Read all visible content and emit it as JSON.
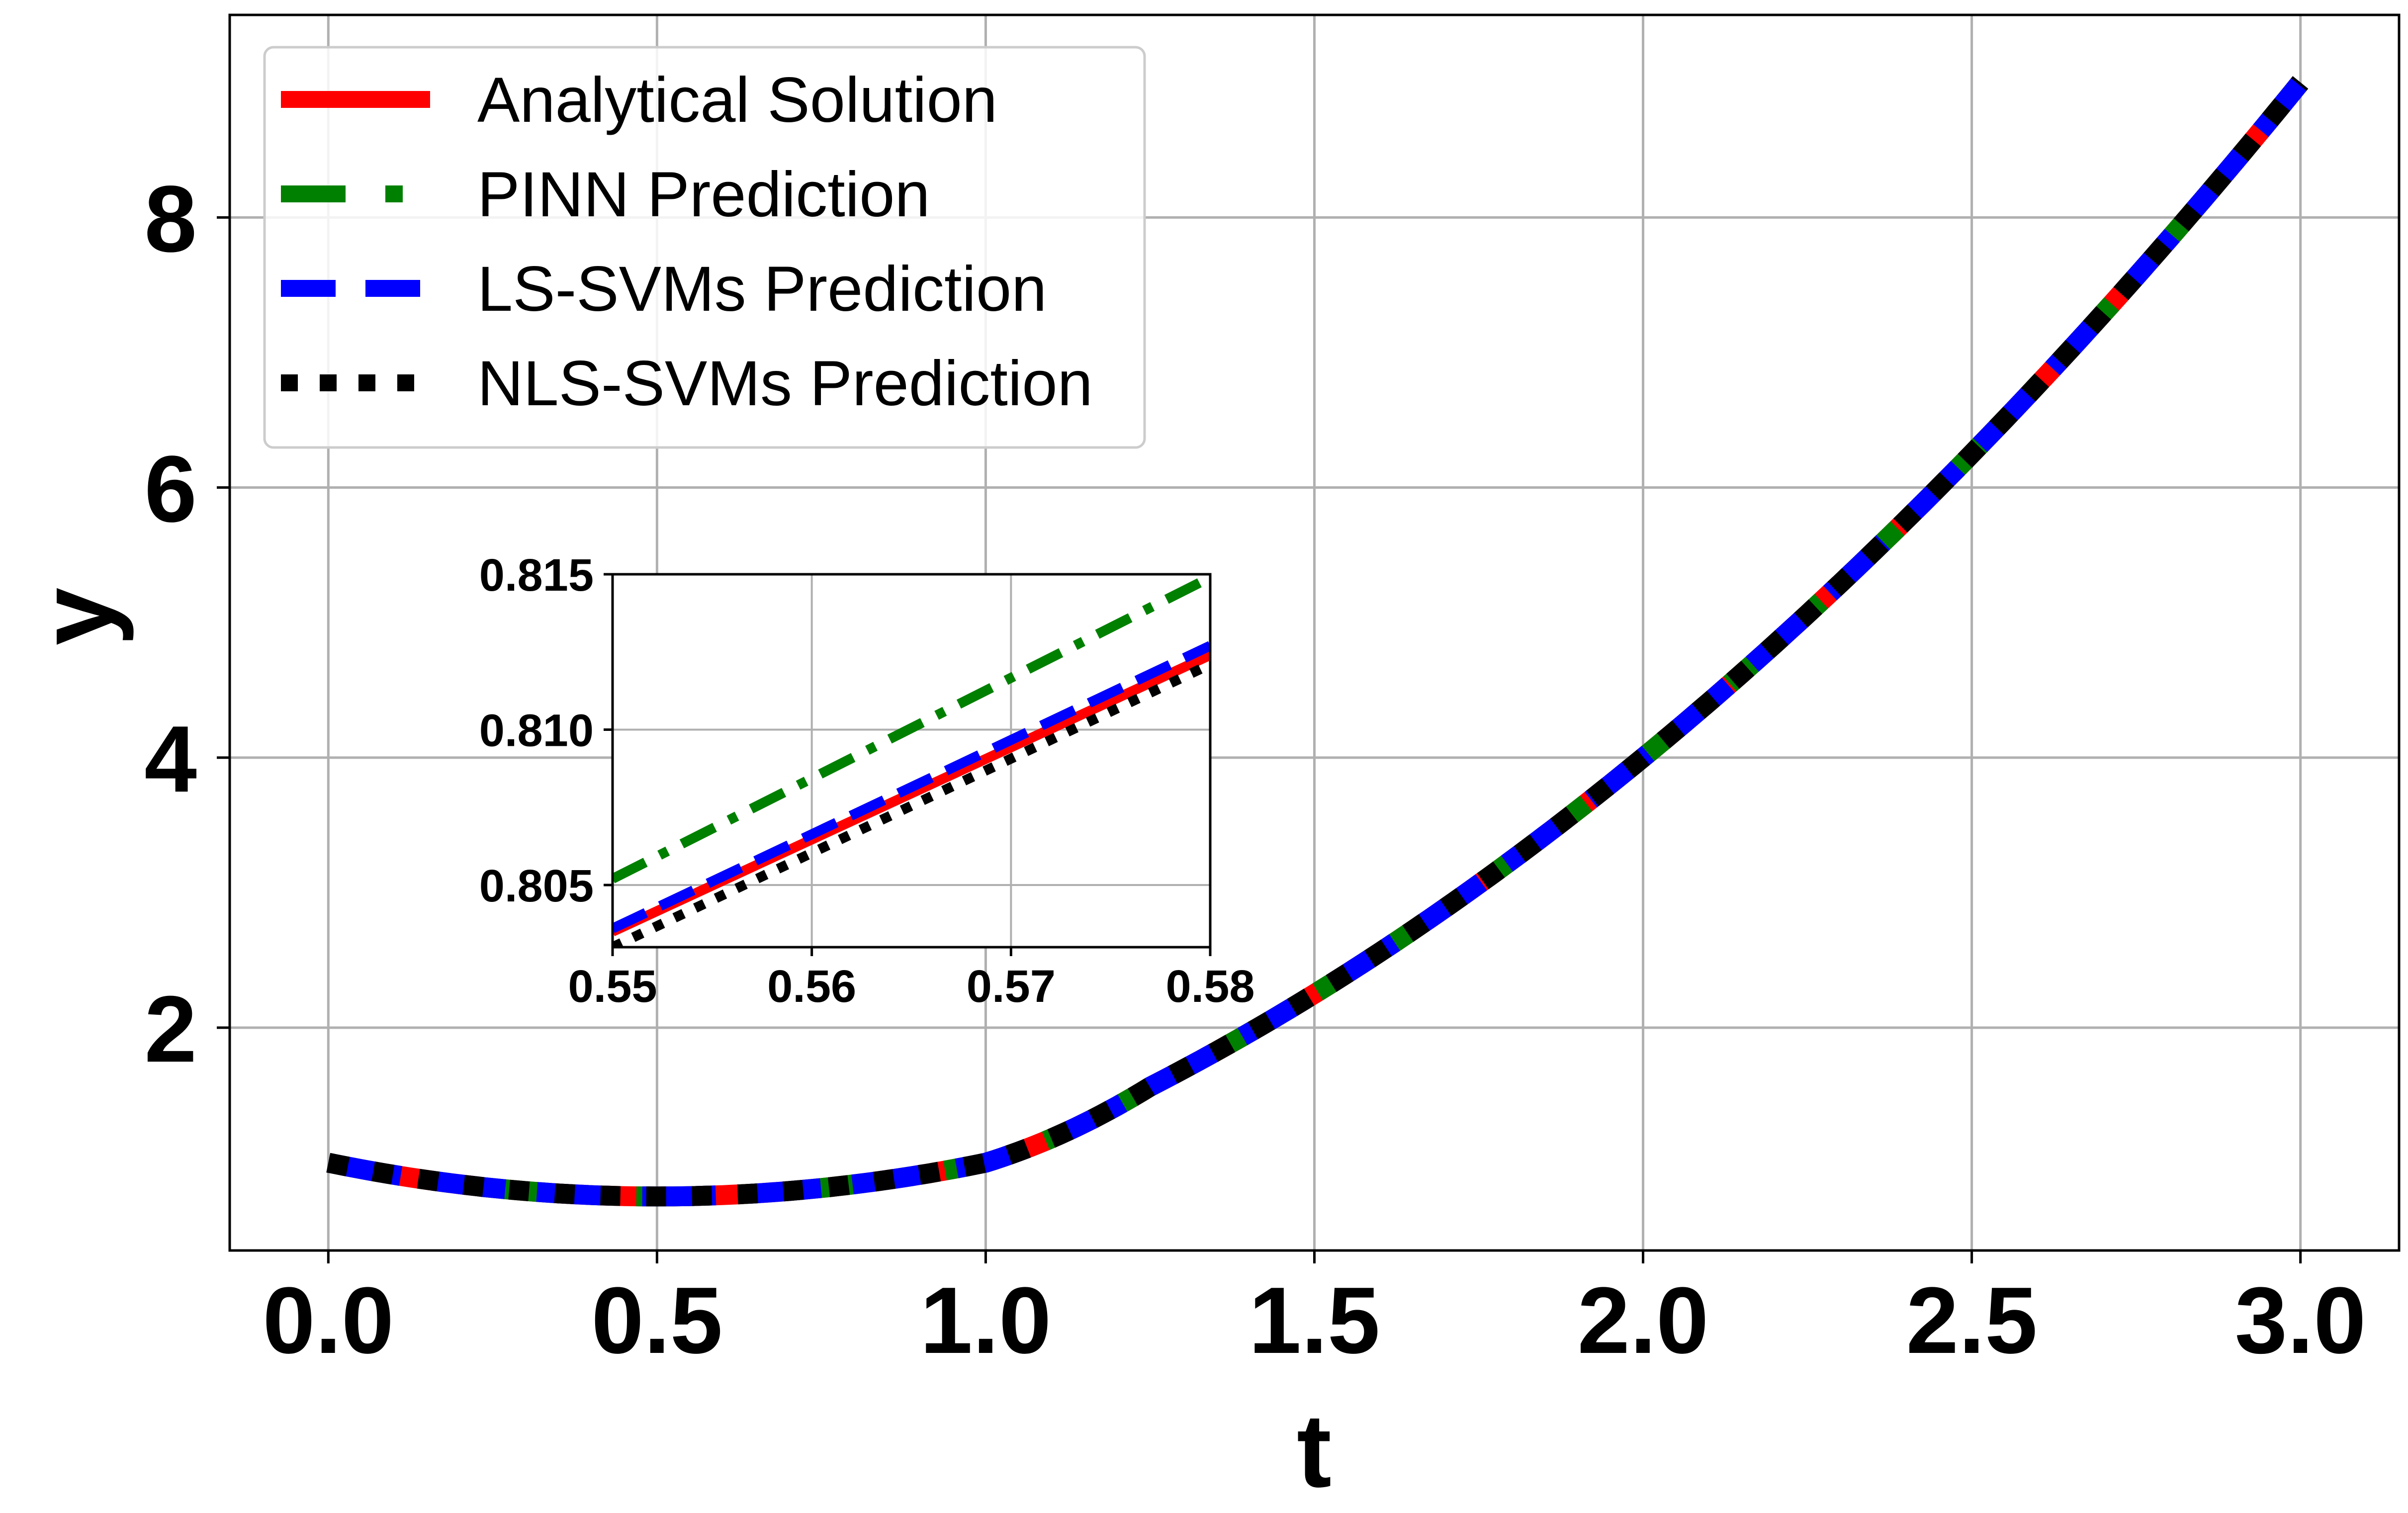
{
  "chart_data": [
    {
      "type": "line",
      "role": "main",
      "xlabel": "t",
      "ylabel": "y",
      "xlim": [
        -0.15,
        3.15
      ],
      "ylim": [
        0.35,
        9.5
      ],
      "xticks": [
        0.0,
        0.5,
        1.0,
        1.5,
        2.0,
        2.5,
        3.0
      ],
      "xtick_labels": [
        "0.0",
        "0.5",
        "1.0",
        "1.5",
        "2.0",
        "2.5",
        "3.0"
      ],
      "yticks": [
        2,
        4,
        6,
        8
      ],
      "ytick_labels": [
        "2",
        "4",
        "6",
        "8"
      ],
      "grid": true,
      "legend_position": "upper-left",
      "series": [
        {
          "name": "Analytical Solution",
          "color": "#ff0000",
          "style": "solid",
          "x": [
            0,
            0.25,
            0.5,
            0.75,
            1.0,
            1.25,
            1.5,
            1.75,
            2.0,
            2.25,
            2.5,
            2.75,
            3.0
          ],
          "y": [
            1.0,
            0.8125,
            0.75,
            0.8125,
            1.0,
            1.5625,
            2.25,
            3.0625,
            4.0,
            5.0625,
            6.25,
            7.5625,
            9.0
          ]
        },
        {
          "name": "PINN Prediction",
          "color": "#008000",
          "style": "dashdot",
          "x": [
            0,
            0.25,
            0.5,
            0.75,
            1.0,
            1.25,
            1.5,
            1.75,
            2.0,
            2.25,
            2.5,
            2.75,
            3.0
          ],
          "y": [
            1.0,
            0.8125,
            0.75,
            0.8125,
            1.0,
            1.5625,
            2.25,
            3.0625,
            4.0,
            5.0625,
            6.25,
            7.5625,
            9.0
          ]
        },
        {
          "name": "LS-SVMs Prediction",
          "color": "#0000ff",
          "style": "dashed",
          "x": [
            0,
            0.25,
            0.5,
            0.75,
            1.0,
            1.25,
            1.5,
            1.75,
            2.0,
            2.25,
            2.5,
            2.75,
            3.0
          ],
          "y": [
            1.0,
            0.8125,
            0.75,
            0.8125,
            1.0,
            1.5625,
            2.25,
            3.0625,
            4.0,
            5.0625,
            6.25,
            7.5625,
            9.0
          ]
        },
        {
          "name": "NLS-SVMs Prediction",
          "color": "#000000",
          "style": "dotted",
          "x": [
            0,
            0.25,
            0.5,
            0.75,
            1.0,
            1.25,
            1.5,
            1.75,
            2.0,
            2.25,
            2.5,
            2.75,
            3.0
          ],
          "y": [
            1.0,
            0.8125,
            0.75,
            0.8125,
            1.0,
            1.5625,
            2.25,
            3.0625,
            4.0,
            5.0625,
            6.25,
            7.5625,
            9.0
          ]
        }
      ]
    },
    {
      "type": "line",
      "role": "inset",
      "xlim": [
        0.55,
        0.58
      ],
      "ylim": [
        0.803,
        0.815
      ],
      "xticks": [
        0.55,
        0.56,
        0.57,
        0.58
      ],
      "xtick_labels": [
        "0.55",
        "0.56",
        "0.57",
        "0.58"
      ],
      "yticks": [
        0.805,
        0.81,
        0.815
      ],
      "ytick_labels": [
        "0.805",
        "0.810",
        "0.815"
      ],
      "grid": true,
      "series": [
        {
          "name": "Analytical Solution",
          "color": "#ff0000",
          "style": "solid",
          "x": [
            0.55,
            0.58
          ],
          "y": [
            0.8035,
            0.8124
          ]
        },
        {
          "name": "PINN Prediction",
          "color": "#008000",
          "style": "dashdot",
          "x": [
            0.55,
            0.58
          ],
          "y": [
            0.8052,
            0.8149
          ]
        },
        {
          "name": "LS-SVMs Prediction",
          "color": "#0000ff",
          "style": "dashed",
          "x": [
            0.55,
            0.58
          ],
          "y": [
            0.8036,
            0.8127
          ]
        },
        {
          "name": "NLS-SVMs Prediction",
          "color": "#000000",
          "style": "dotted",
          "x": [
            0.55,
            0.58
          ],
          "y": [
            0.803,
            0.8121
          ]
        }
      ]
    }
  ]
}
